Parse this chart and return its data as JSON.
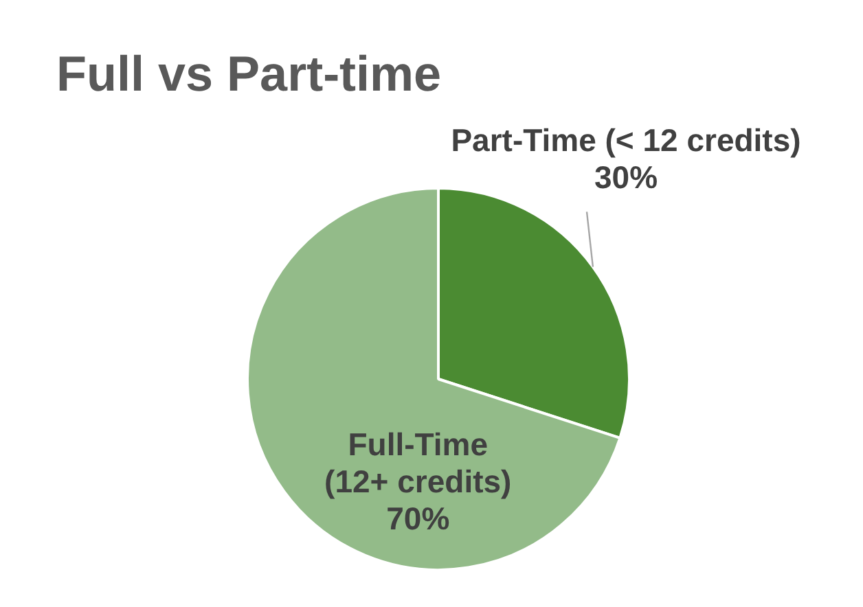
{
  "chart_data": {
    "type": "pie",
    "title": "Full vs Part-time",
    "categories": [
      "Part-Time (< 12 credits)",
      "Full-Time (12+ credits)"
    ],
    "values": [
      30,
      70
    ],
    "colors": [
      "#4b8b32",
      "#93bb89"
    ],
    "value_labels": [
      "30%",
      "70%"
    ]
  }
}
